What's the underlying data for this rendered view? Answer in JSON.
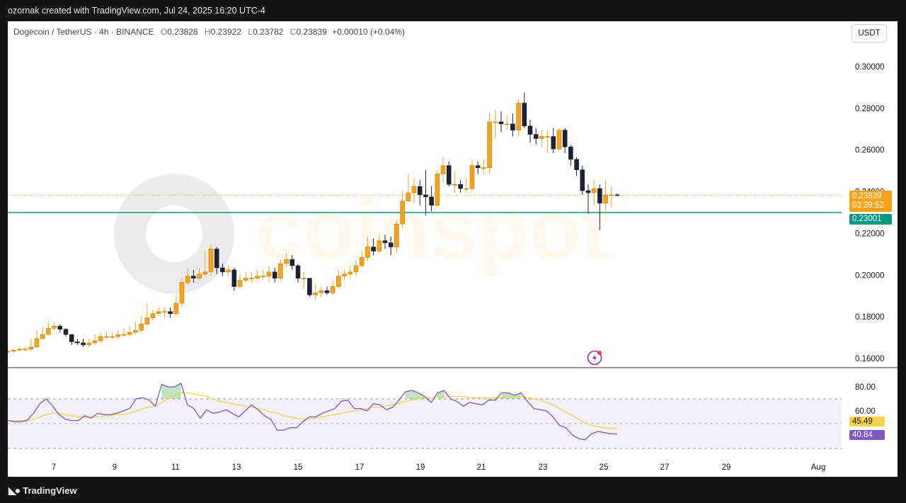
{
  "header": {
    "credit": "ozornak created with TradingView.com, Jul 24, 2025 16:20 UTC-4"
  },
  "legend": {
    "symbol": "Dogecoin / TetherUS · 4h · BINANCE",
    "o_label": "O",
    "o": "0.23828",
    "h_label": "H",
    "h": "0.23922",
    "l_label": "L",
    "l": "0.23782",
    "c_label": "C",
    "c": "0.23839",
    "change": "+0.00010 (+0.04%)"
  },
  "currency_button": "USDT",
  "watermark": "coinspot",
  "price_badge": {
    "price": "0.23839",
    "countdown": "03:39:52",
    "color": "#f7a21b"
  },
  "level_badge": {
    "price": "0.23001",
    "color": "#089981"
  },
  "rsi_badges": {
    "ma": "45.49",
    "rsi": "40.84"
  },
  "footer": {
    "brand": "TradingView"
  },
  "colors": {
    "up": "#f7a21b",
    "down": "#1e2235",
    "level": "#089981",
    "rsi": "#7e57c2",
    "rsi_ma": "#f5d24a"
  },
  "chart_data": [
    {
      "type": "candlestick",
      "title": "Dogecoin / TetherUS · 4h · BINANCE",
      "ylim": [
        0.158,
        0.31
      ],
      "y_ticks": [
        "0.30000",
        "0.28000",
        "0.26000",
        "0.24000",
        "0.22000",
        "0.20000",
        "0.18000",
        "0.16000"
      ],
      "x_ticks": [
        "7",
        "9",
        "11",
        "13",
        "15",
        "17",
        "19",
        "21",
        "23",
        "25",
        "27",
        "29",
        "Aug"
      ],
      "horizontal_line": 0.23001,
      "last_price_line": 0.23839,
      "closes": [
        0.1635,
        0.164,
        0.1645,
        0.1645,
        0.1655,
        0.1695,
        0.1715,
        0.1745,
        0.1755,
        0.174,
        0.1715,
        0.168,
        0.1675,
        0.1665,
        0.1675,
        0.1685,
        0.1705,
        0.1705,
        0.1705,
        0.1715,
        0.1715,
        0.1725,
        0.1735,
        0.1765,
        0.1795,
        0.1815,
        0.1825,
        0.1825,
        0.1815,
        0.1865,
        0.1965,
        0.1995,
        0.1985,
        0.2005,
        0.2015,
        0.2125,
        0.2035,
        0.2015,
        0.2025,
        0.1945,
        0.1975,
        0.1985,
        0.1985,
        0.1995,
        0.1995,
        0.2015,
        0.1985,
        0.2055,
        0.2075,
        0.2045,
        0.1985,
        0.1985,
        0.1905,
        0.1915,
        0.1925,
        0.1915,
        0.1945,
        0.1995,
        0.2005,
        0.2015,
        0.2045,
        0.2085,
        0.2135,
        0.2115,
        0.2165,
        0.2155,
        0.2135,
        0.2245,
        0.2355,
        0.2395,
        0.2425,
        0.2385,
        0.2375,
        0.2335,
        0.2485,
        0.2525,
        0.2435,
        0.2435,
        0.2415,
        0.2415,
        0.2525,
        0.2515,
        0.2515,
        0.2735,
        0.2735,
        0.2725,
        0.2725,
        0.2695,
        0.2825,
        0.2715,
        0.2675,
        0.2655,
        0.2665,
        0.2665,
        0.2605,
        0.2695,
        0.2615,
        0.2555,
        0.2505,
        0.2405,
        0.2395,
        0.2415,
        0.2345,
        0.2385,
        0.2385,
        0.23839
      ],
      "highs": [
        0.1645,
        0.1645,
        0.165,
        0.1655,
        0.1695,
        0.1735,
        0.1755,
        0.1775,
        0.1775,
        0.1765,
        0.1745,
        0.1715,
        0.1695,
        0.1695,
        0.1695,
        0.1715,
        0.1725,
        0.1725,
        0.1725,
        0.1735,
        0.1745,
        0.1755,
        0.1775,
        0.1805,
        0.1865,
        0.1835,
        0.1845,
        0.1845,
        0.1845,
        0.1905,
        0.1985,
        0.2035,
        0.2025,
        0.2035,
        0.2115,
        0.2145,
        0.2135,
        0.2055,
        0.2045,
        0.2035,
        0.2005,
        0.2015,
        0.2015,
        0.2025,
        0.2025,
        0.2045,
        0.2035,
        0.2075,
        0.2105,
        0.2095,
        0.2055,
        0.2015,
        0.1985,
        0.1955,
        0.1945,
        0.1945,
        0.1975,
        0.2025,
        0.2025,
        0.2045,
        0.2075,
        0.2115,
        0.2185,
        0.2175,
        0.2195,
        0.2195,
        0.2185,
        0.2265,
        0.2405,
        0.2485,
        0.2465,
        0.2455,
        0.2505,
        0.2425,
        0.2505,
        0.2565,
        0.2545,
        0.2495,
        0.2455,
        0.2465,
        0.2555,
        0.2545,
        0.2555,
        0.2775,
        0.2795,
        0.2785,
        0.2765,
        0.2775,
        0.2845,
        0.2875,
        0.2745,
        0.2705,
        0.2695,
        0.2695,
        0.2705,
        0.2705,
        0.2705,
        0.2625,
        0.2565,
        0.2525,
        0.2435,
        0.2455,
        0.2435,
        0.2455,
        0.2425,
        0.23922
      ],
      "lows": [
        0.1625,
        0.1625,
        0.1635,
        0.1635,
        0.1635,
        0.1655,
        0.1695,
        0.1715,
        0.1735,
        0.1725,
        0.1705,
        0.1665,
        0.1665,
        0.1655,
        0.1655,
        0.1665,
        0.1675,
        0.1695,
        0.1695,
        0.1695,
        0.1705,
        0.1705,
        0.1715,
        0.1725,
        0.1755,
        0.1785,
        0.1805,
        0.1795,
        0.1795,
        0.1805,
        0.1845,
        0.1955,
        0.1965,
        0.1975,
        0.1995,
        0.1995,
        0.2005,
        0.1995,
        0.1995,
        0.1925,
        0.1935,
        0.1965,
        0.1965,
        0.1975,
        0.1975,
        0.1965,
        0.1965,
        0.1975,
        0.2035,
        0.2025,
        0.1965,
        0.1935,
        0.1895,
        0.1885,
        0.1895,
        0.1905,
        0.1905,
        0.1935,
        0.1975,
        0.1985,
        0.1995,
        0.2035,
        0.2065,
        0.2095,
        0.2105,
        0.2125,
        0.2095,
        0.2105,
        0.2225,
        0.2355,
        0.2345,
        0.2335,
        0.2285,
        0.2305,
        0.2325,
        0.2445,
        0.2425,
        0.2395,
        0.2395,
        0.2395,
        0.2405,
        0.2485,
        0.2485,
        0.2485,
        0.2655,
        0.2685,
        0.2695,
        0.2665,
        0.2665,
        0.2705,
        0.2635,
        0.2625,
        0.2615,
        0.2585,
        0.2585,
        0.2595,
        0.2585,
        0.2525,
        0.2475,
        0.2385,
        0.2295,
        0.2335,
        0.2215,
        0.2305,
        0.2325,
        0.23782
      ]
    },
    {
      "type": "line",
      "title": "RSI",
      "ylim": [
        20,
        92
      ],
      "y_ticks": [
        "80.00",
        "60.00"
      ],
      "bands": [
        70,
        50,
        30
      ],
      "series": [
        {
          "name": "RSI",
          "values": [
            52,
            51,
            51,
            52,
            58,
            66,
            70,
            64,
            57,
            53,
            52,
            52,
            56,
            54,
            58,
            57,
            57,
            58,
            60,
            62,
            70,
            71,
            69,
            64,
            82,
            80,
            80,
            83,
            65,
            62,
            54,
            61,
            58,
            59,
            61,
            58,
            55,
            60,
            65,
            61,
            56,
            53,
            44,
            44,
            46,
            46,
            51,
            55,
            55,
            58,
            60,
            62,
            68,
            69,
            62,
            62,
            60,
            66,
            65,
            61,
            63,
            69,
            76,
            77,
            75,
            72,
            67,
            75,
            77,
            70,
            68,
            64,
            67,
            66,
            65,
            69,
            69,
            75,
            75,
            73,
            75,
            68,
            62,
            61,
            60,
            55,
            48,
            46,
            40,
            37,
            36,
            41,
            43,
            42,
            41,
            40.84
          ]
        },
        {
          "name": "MA",
          "values": [
            52,
            52,
            52,
            52,
            53,
            55,
            57,
            58,
            58,
            57,
            56,
            55,
            55,
            55,
            55,
            56,
            56,
            57,
            57,
            58,
            60,
            62,
            63,
            64,
            67,
            70,
            73,
            75,
            75,
            74,
            73,
            72,
            70,
            68,
            67,
            66,
            65,
            64,
            63,
            62,
            61,
            59,
            58,
            56,
            55,
            54,
            53,
            53,
            54,
            55,
            56,
            57,
            58,
            59,
            60,
            61,
            62,
            63,
            63,
            64,
            65,
            66,
            68,
            69,
            70,
            71,
            71,
            72,
            72,
            72,
            72,
            72,
            71,
            71,
            71,
            71,
            71,
            71,
            72,
            72,
            72,
            71,
            70,
            69,
            67,
            65,
            62,
            59,
            56,
            53,
            50,
            48,
            47,
            46,
            45.5,
            45.49
          ]
        }
      ]
    }
  ]
}
